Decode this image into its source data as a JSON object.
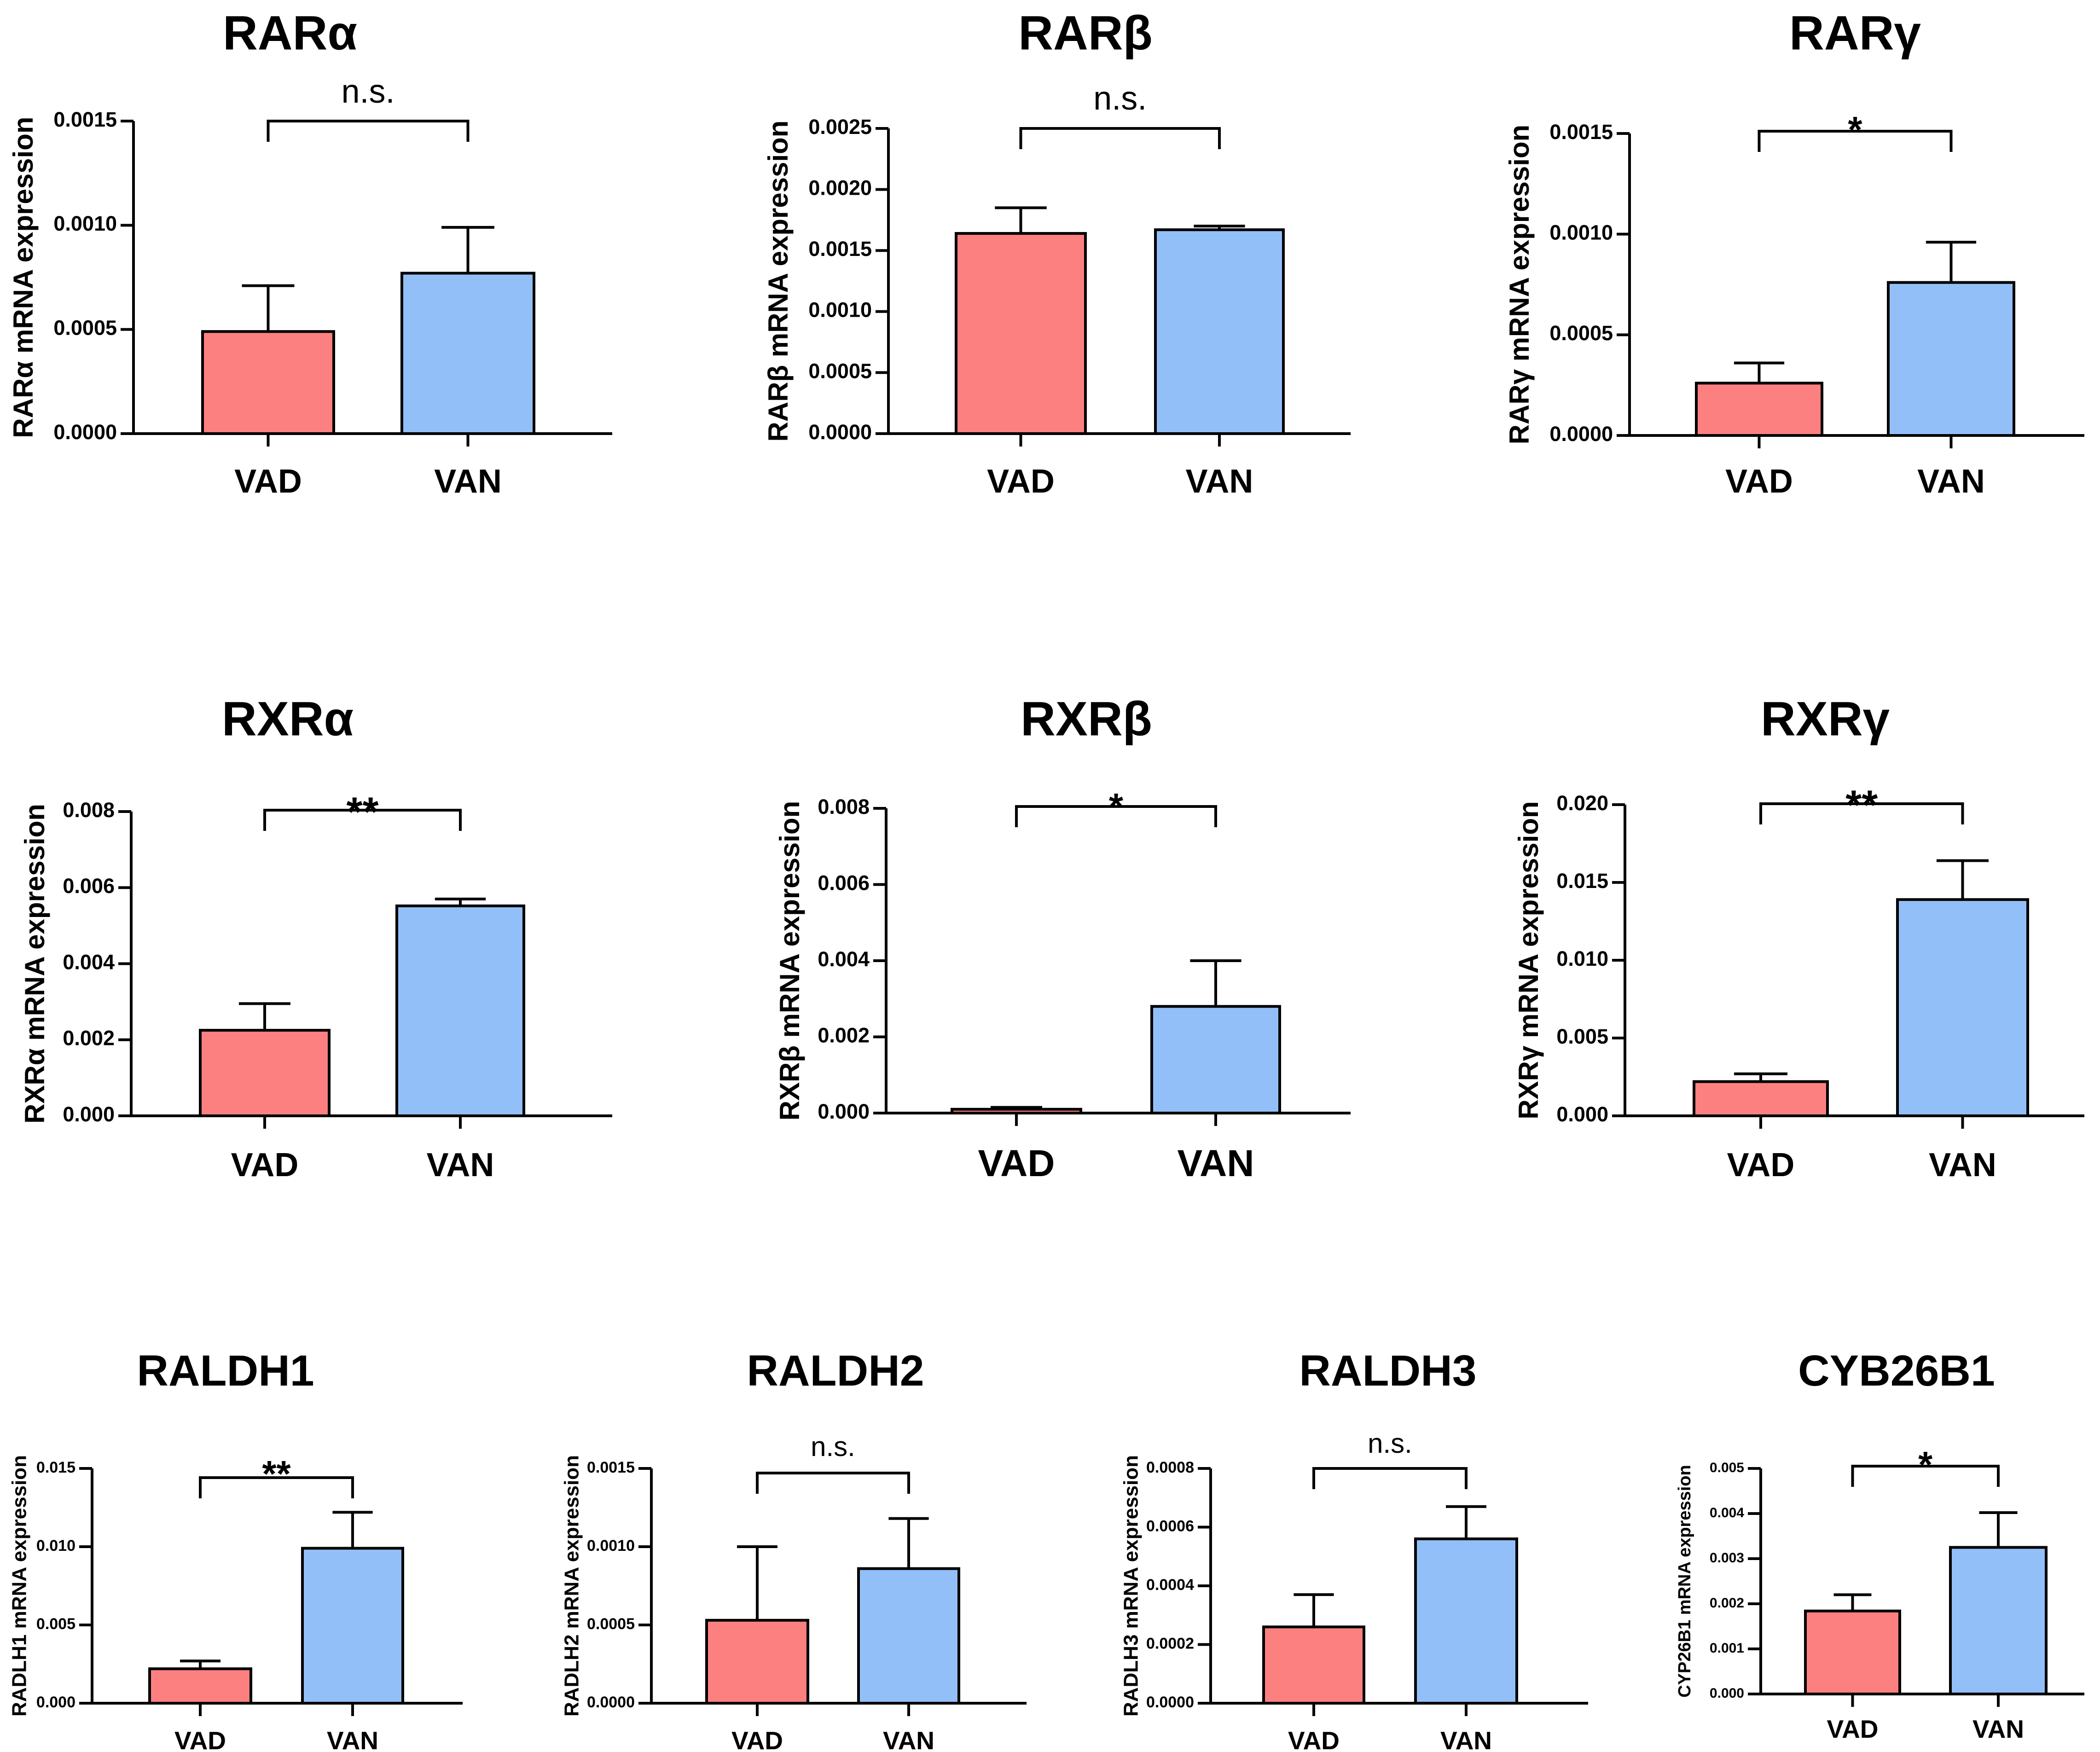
{
  "colors": {
    "VAD": "#fc8080",
    "VAN": "#92bff8"
  },
  "chart_data": [
    {
      "type": "bar",
      "title": "RARα",
      "ylabel": "RARα mRNA expression",
      "categories": [
        "VAD",
        "VAN"
      ],
      "values": [
        0.00049,
        0.00077
      ],
      "errors": [
        0.00022,
        0.00022
      ],
      "ylim": [
        0,
        0.0015
      ],
      "yticks": [
        "0.0000",
        "0.0005",
        "0.0010",
        "0.0015"
      ],
      "significance": "n.s."
    },
    {
      "type": "bar",
      "title": "RARβ",
      "ylabel": "RARβ mRNA expression",
      "categories": [
        "VAD",
        "VAN"
      ],
      "values": [
        0.00164,
        0.00167
      ],
      "errors": [
        0.00021,
        3e-05
      ],
      "ylim": [
        0,
        0.0025
      ],
      "yticks": [
        "0.0000",
        "0.0005",
        "0.0010",
        "0.0015",
        "0.0020",
        "0.0025"
      ],
      "significance": "n.s."
    },
    {
      "type": "bar",
      "title": "RARγ",
      "ylabel": "RARγ mRNA expression",
      "categories": [
        "VAD",
        "VAN"
      ],
      "values": [
        0.00026,
        0.00076
      ],
      "errors": [
        0.0001,
        0.0002
      ],
      "ylim": [
        0,
        0.0015
      ],
      "yticks": [
        "0.0000",
        "0.0005",
        "0.0010",
        "0.0015"
      ],
      "significance": "*"
    },
    {
      "type": "bar",
      "title": "RXRα",
      "ylabel": "RXRα mRNA expression",
      "categories": [
        "VAD",
        "VAN"
      ],
      "values": [
        0.00225,
        0.00552
      ],
      "errors": [
        0.0007,
        0.00018
      ],
      "ylim": [
        0,
        0.008
      ],
      "yticks": [
        "0.000",
        "0.002",
        "0.004",
        "0.006",
        "0.008"
      ],
      "significance": "**"
    },
    {
      "type": "bar",
      "title": "RXRβ",
      "ylabel": "RXRβ mRNA expression",
      "categories": [
        "VAD",
        "VAN"
      ],
      "values": [
        0.0001,
        0.0028
      ],
      "errors": [
        5e-05,
        0.0012
      ],
      "ylim": [
        0,
        0.008
      ],
      "yticks": [
        "0.000",
        "0.002",
        "0.004",
        "0.006",
        "0.008"
      ],
      "significance": "*"
    },
    {
      "type": "bar",
      "title": "RXRγ",
      "ylabel": "RXRγ mRNA expression",
      "categories": [
        "VAD",
        "VAN"
      ],
      "values": [
        0.0022,
        0.0139
      ],
      "errors": [
        0.0005,
        0.0025
      ],
      "ylim": [
        0,
        0.02
      ],
      "yticks": [
        "0.000",
        "0.005",
        "0.010",
        "0.015",
        "0.020"
      ],
      "significance": "**"
    },
    {
      "type": "bar",
      "title": "RALDH1",
      "ylabel": "RADLH1 mRNA expression",
      "categories": [
        "VAD",
        "VAN"
      ],
      "values": [
        0.0022,
        0.0099
      ],
      "errors": [
        0.0005,
        0.0023
      ],
      "ylim": [
        0,
        0.015
      ],
      "yticks": [
        "0.000",
        "0.005",
        "0.010",
        "0.015"
      ],
      "significance": "**"
    },
    {
      "type": "bar",
      "title": "RALDH2",
      "ylabel": "RADLH2 mRNA expression",
      "categories": [
        "VAD",
        "VAN"
      ],
      "values": [
        0.00053,
        0.00086
      ],
      "errors": [
        0.00047,
        0.00032
      ],
      "ylim": [
        0,
        0.0015
      ],
      "yticks": [
        "0.0000",
        "0.0005",
        "0.0010",
        "0.0015"
      ],
      "significance": "n.s."
    },
    {
      "type": "bar",
      "title": "RALDH3",
      "ylabel": "RADLH3 mRNA expression",
      "categories": [
        "VAD",
        "VAN"
      ],
      "values": [
        0.00026,
        0.00056
      ],
      "errors": [
        0.00011,
        0.00011
      ],
      "ylim": [
        0,
        0.0008
      ],
      "yticks": [
        "0.0000",
        "0.0002",
        "0.0004",
        "0.0006",
        "0.0008"
      ],
      "significance": "n.s."
    },
    {
      "type": "bar",
      "title": "CYB26B1",
      "ylabel": "CYP26B1 mRNA expression",
      "categories": [
        "VAD",
        "VAN"
      ],
      "values": [
        0.00184,
        0.00325
      ],
      "errors": [
        0.00036,
        0.00077
      ],
      "ylim": [
        0,
        0.005
      ],
      "yticks": [
        "0.000",
        "0.001",
        "0.002",
        "0.003",
        "0.004",
        "0.005"
      ],
      "significance": "*"
    }
  ]
}
